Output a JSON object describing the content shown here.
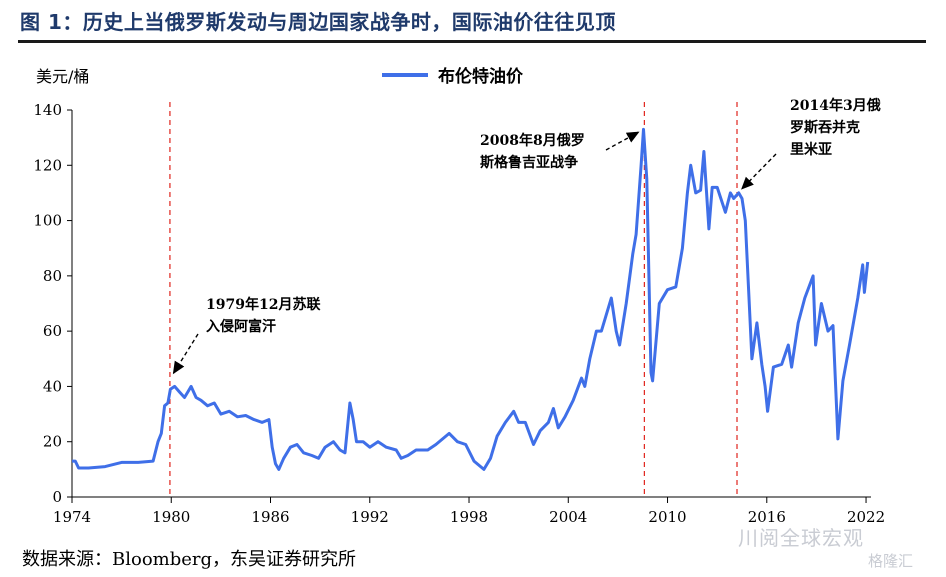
{
  "figure": {
    "title": "图 1：历史上当俄罗斯发动与周边国家战争时，国际油价往往见顶",
    "source": "数据来源：Bloomberg，东吴证券研究所",
    "watermark": "川阅全球宏观",
    "watermark2": "格隆汇"
  },
  "chart_data": {
    "type": "line",
    "title": "",
    "xlabel": "",
    "ylabel": "美元/桶",
    "xlim": [
      1974,
      2022.3
    ],
    "ylim": [
      0,
      140
    ],
    "grid": false,
    "legend_position": "top-center",
    "x_ticks": [
      {
        "value": 1974,
        "label": "1974"
      },
      {
        "value": 1980,
        "label": "1980"
      },
      {
        "value": 1986,
        "label": "1986"
      },
      {
        "value": 1992,
        "label": "1992"
      },
      {
        "value": 1998,
        "label": "1998"
      },
      {
        "value": 2004,
        "label": "2004"
      },
      {
        "value": 2010,
        "label": "2010"
      },
      {
        "value": 2016,
        "label": "2016"
      },
      {
        "value": 2022,
        "label": "2022"
      }
    ],
    "y_ticks": [
      {
        "value": 0,
        "label": "0"
      },
      {
        "value": 20,
        "label": "20"
      },
      {
        "value": 40,
        "label": "40"
      },
      {
        "value": 60,
        "label": "60"
      },
      {
        "value": 80,
        "label": "80"
      },
      {
        "value": 100,
        "label": "100"
      },
      {
        "value": 120,
        "label": "120"
      },
      {
        "value": 140,
        "label": "140"
      }
    ],
    "series": [
      {
        "name": "布伦特油价",
        "color": "#3f6fe8",
        "points": [
          [
            1974.0,
            13
          ],
          [
            1974.2,
            13
          ],
          [
            1974.4,
            10.5
          ],
          [
            1975.0,
            10.5
          ],
          [
            1976.0,
            11
          ],
          [
            1977.0,
            12.5
          ],
          [
            1978.0,
            12.5
          ],
          [
            1978.9,
            13
          ],
          [
            1979.2,
            20
          ],
          [
            1979.4,
            23
          ],
          [
            1979.6,
            33
          ],
          [
            1979.8,
            34
          ],
          [
            1979.95,
            39
          ],
          [
            1980.2,
            40
          ],
          [
            1980.5,
            38
          ],
          [
            1980.8,
            36
          ],
          [
            1981.0,
            38
          ],
          [
            1981.2,
            40
          ],
          [
            1981.5,
            36
          ],
          [
            1981.8,
            35
          ],
          [
            1982.2,
            33
          ],
          [
            1982.6,
            34
          ],
          [
            1983.0,
            30
          ],
          [
            1983.5,
            31
          ],
          [
            1984.0,
            29
          ],
          [
            1984.5,
            29.5
          ],
          [
            1985.0,
            28
          ],
          [
            1985.5,
            27
          ],
          [
            1985.9,
            28
          ],
          [
            1986.1,
            18
          ],
          [
            1986.3,
            12
          ],
          [
            1986.5,
            10
          ],
          [
            1986.8,
            14
          ],
          [
            1987.2,
            18
          ],
          [
            1987.6,
            19
          ],
          [
            1988.0,
            16
          ],
          [
            1988.5,
            15
          ],
          [
            1988.9,
            14
          ],
          [
            1989.3,
            18
          ],
          [
            1989.8,
            20
          ],
          [
            1990.2,
            17
          ],
          [
            1990.5,
            16
          ],
          [
            1990.8,
            34
          ],
          [
            1991.0,
            28
          ],
          [
            1991.2,
            20
          ],
          [
            1991.6,
            20
          ],
          [
            1992.0,
            18
          ],
          [
            1992.5,
            20
          ],
          [
            1993.0,
            18
          ],
          [
            1993.6,
            17
          ],
          [
            1993.9,
            14
          ],
          [
            1994.3,
            15
          ],
          [
            1994.8,
            17
          ],
          [
            1995.5,
            17
          ],
          [
            1996.0,
            19
          ],
          [
            1996.8,
            23
          ],
          [
            1997.3,
            20
          ],
          [
            1997.8,
            19
          ],
          [
            1998.3,
            13
          ],
          [
            1998.9,
            10
          ],
          [
            1999.3,
            14
          ],
          [
            1999.7,
            22
          ],
          [
            2000.2,
            27
          ],
          [
            2000.7,
            31
          ],
          [
            2001.0,
            27
          ],
          [
            2001.4,
            27
          ],
          [
            2001.9,
            19
          ],
          [
            2002.3,
            24
          ],
          [
            2002.8,
            27
          ],
          [
            2003.1,
            32
          ],
          [
            2003.4,
            25
          ],
          [
            2003.8,
            29
          ],
          [
            2004.3,
            35
          ],
          [
            2004.8,
            43
          ],
          [
            2005.0,
            40
          ],
          [
            2005.3,
            50
          ],
          [
            2005.7,
            60
          ],
          [
            2006.0,
            60
          ],
          [
            2006.6,
            72
          ],
          [
            2006.9,
            60
          ],
          [
            2007.1,
            55
          ],
          [
            2007.5,
            70
          ],
          [
            2007.9,
            88
          ],
          [
            2008.1,
            95
          ],
          [
            2008.4,
            120
          ],
          [
            2008.55,
            133
          ],
          [
            2008.75,
            115
          ],
          [
            2009.0,
            45
          ],
          [
            2009.1,
            42
          ],
          [
            2009.5,
            70
          ],
          [
            2010.0,
            75
          ],
          [
            2010.5,
            76
          ],
          [
            2010.9,
            90
          ],
          [
            2011.2,
            110
          ],
          [
            2011.4,
            120
          ],
          [
            2011.7,
            110
          ],
          [
            2012.0,
            111
          ],
          [
            2012.2,
            125
          ],
          [
            2012.5,
            97
          ],
          [
            2012.7,
            112
          ],
          [
            2013.0,
            112
          ],
          [
            2013.5,
            103
          ],
          [
            2013.8,
            110
          ],
          [
            2014.0,
            108
          ],
          [
            2014.3,
            110
          ],
          [
            2014.5,
            108
          ],
          [
            2014.7,
            100
          ],
          [
            2014.9,
            75
          ],
          [
            2015.1,
            50
          ],
          [
            2015.4,
            63
          ],
          [
            2015.7,
            48
          ],
          [
            2015.9,
            40
          ],
          [
            2016.05,
            31
          ],
          [
            2016.4,
            47
          ],
          [
            2016.9,
            48
          ],
          [
            2017.3,
            55
          ],
          [
            2017.5,
            47
          ],
          [
            2017.9,
            63
          ],
          [
            2018.3,
            72
          ],
          [
            2018.8,
            80
          ],
          [
            2018.95,
            55
          ],
          [
            2019.3,
            70
          ],
          [
            2019.7,
            60
          ],
          [
            2020.0,
            62
          ],
          [
            2020.25,
            28
          ],
          [
            2020.3,
            21
          ],
          [
            2020.6,
            42
          ],
          [
            2021.0,
            55
          ],
          [
            2021.5,
            72
          ],
          [
            2021.8,
            84
          ],
          [
            2021.9,
            74
          ],
          [
            2022.1,
            85
          ]
        ]
      }
    ],
    "vlines": [
      {
        "x": 1979.92,
        "color": "#e0231c"
      },
      {
        "x": 2008.6,
        "color": "#e0231c"
      },
      {
        "x": 2014.2,
        "color": "#e0231c"
      }
    ],
    "annotations": [
      {
        "id": "ann-1979",
        "text": "1979年12月苏联\n入侵阿富汗",
        "point": [
          1979.95,
          43
        ]
      },
      {
        "id": "ann-2008",
        "text": "2008年8月俄罗\n斯格鲁吉亚战争",
        "point": [
          2008.55,
          133
        ]
      },
      {
        "id": "ann-2014",
        "text": "2014年3月俄\n罗斯吞并克\n里米亚",
        "point": [
          2014.25,
          110
        ]
      }
    ]
  }
}
